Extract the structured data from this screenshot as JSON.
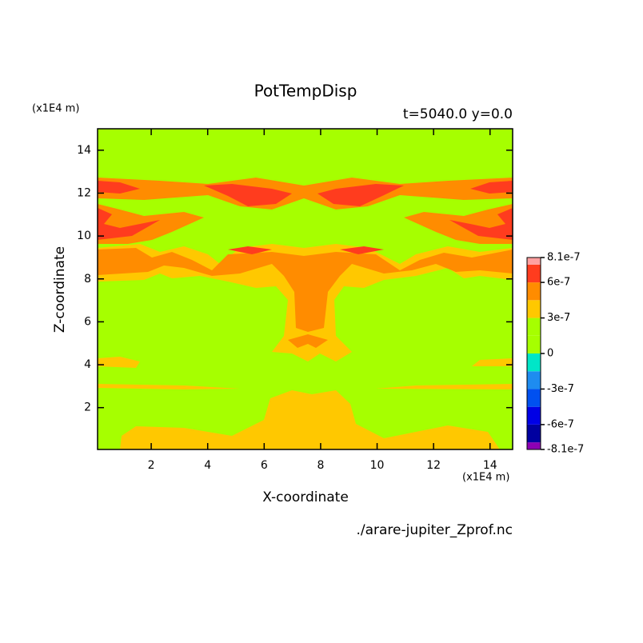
{
  "chart_data": {
    "type": "contour",
    "title": "PotTempDisp",
    "subtitle": "t=5040.0 y=0.0",
    "x_label": "X-coordinate",
    "y_label": "Z-coordinate",
    "x_unit": "(x1E4 m)",
    "y_unit": "(x1E4 m)",
    "file": "./arare-jupiter_Zprof.nc",
    "xlim": [
      0.1,
      14.8
    ],
    "ylim": [
      0.05,
      15
    ],
    "xticks": [
      2,
      4,
      6,
      8,
      10,
      12,
      14
    ],
    "yticks": [
      2,
      4,
      6,
      8,
      10,
      12,
      14
    ],
    "colorbar": {
      "bounds": [
        -8.1e-07,
        -7.5e-07,
        -6e-07,
        -4.5e-07,
        -3e-07,
        -1.5e-07,
        0,
        1.5e-07,
        3e-07,
        4.5e-07,
        6e-07,
        7.5e-07,
        8.1e-07
      ],
      "colors": [
        "#8c00b4",
        "#0000a0",
        "#0000e6",
        "#0050f0",
        "#1e8cf0",
        "#00e6c8",
        "#a6ff00",
        "#a6ff00",
        "#ffc800",
        "#ff8c00",
        "#ff3c1e",
        "#ffa0a0"
      ],
      "ticks": [
        8.1e-07,
        6e-07,
        3e-07,
        0,
        -3e-07,
        -6e-07,
        -8.1e-07
      ]
    }
  }
}
